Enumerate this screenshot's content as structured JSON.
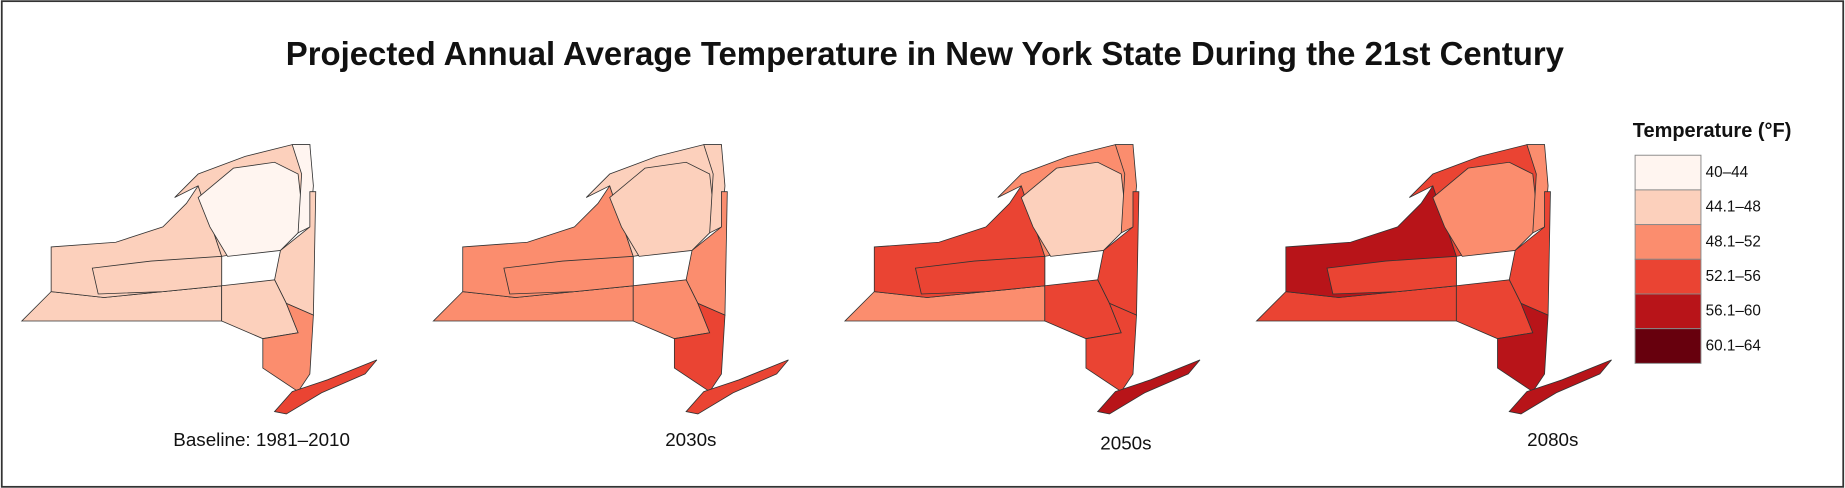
{
  "title": "Projected Annual Average Temperature in New York State During the 21st Century",
  "legend": {
    "title": "Temperature (°F)",
    "items": [
      {
        "label": "40–44",
        "color": "#fff5f0"
      },
      {
        "label": "44.1–48",
        "color": "#fcd0bc"
      },
      {
        "label": "48.1–52",
        "color": "#fb8d6e"
      },
      {
        "label": "52.1–56",
        "color": "#ea4433"
      },
      {
        "label": "56.1–60",
        "color": "#b81419"
      },
      {
        "label": "60.1–64",
        "color": "#67000d"
      }
    ]
  },
  "maps": [
    {
      "label": "Baseline: 1981–2010",
      "fills": [
        "#fcd0bc",
        "#fcd0bc",
        "#fcd0bc",
        "#fcd0bc",
        "#fff5f0",
        "#fff5f0",
        "#fcd0bc",
        "#fcd0bc",
        "#fb8d6e",
        "#ea4433"
      ]
    },
    {
      "label": "2030s",
      "fills": [
        "#fb8d6e",
        "#fb8d6e",
        "#fb8d6e",
        "#fcd0bc",
        "#fcd0bc",
        "#fcd0bc",
        "#fb8d6e",
        "#fb8d6e",
        "#ea4433",
        "#ea4433"
      ]
    },
    {
      "label": "2050s",
      "fills": [
        "#fb8d6e",
        "#ea4433",
        "#ea4433",
        "#fb8d6e",
        "#fcd0bc",
        "#fb8d6e",
        "#ea4433",
        "#ea4433",
        "#ea4433",
        "#b81419"
      ]
    },
    {
      "label": "2080s",
      "fills": [
        "#ea4433",
        "#b81419",
        "#ea4433",
        "#ea4433",
        "#fb8d6e",
        "#fb8d6e",
        "#ea4433",
        "#ea4433",
        "#b81419",
        "#b81419"
      ]
    }
  ]
}
